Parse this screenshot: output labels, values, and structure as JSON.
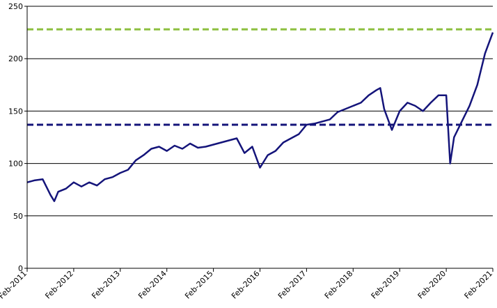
{
  "chart_data": {
    "type": "line",
    "title": "",
    "xlabel": "",
    "ylabel": "",
    "ylim": [
      0,
      250
    ],
    "y_ticks": [
      0,
      50,
      100,
      150,
      200,
      250
    ],
    "x_ticks": [
      "Feb-2011",
      "Feb-2012",
      "Feb-2013",
      "Feb-2014",
      "Feb-2015",
      "Feb-2016",
      "Feb-2017",
      "Feb-2018",
      "Feb-2019",
      "Feb-2020",
      "Feb-2021"
    ],
    "grid": "horizontal",
    "colors": {
      "series": "#14147a",
      "level_high": "#8cbf3f",
      "level_low": "#14147a"
    },
    "reference_lines": [
      {
        "y": 228,
        "color": "#8cbf3f",
        "style": "dashed"
      },
      {
        "y": 137,
        "color": "#14147a",
        "style": "dashed"
      }
    ],
    "series": [
      {
        "x": [
          "2011-02",
          "2011-04",
          "2011-06",
          "2011-08",
          "2011-09",
          "2011-10",
          "2011-12",
          "2012-02",
          "2012-04",
          "2012-06",
          "2012-08",
          "2012-10",
          "2012-12",
          "2013-02",
          "2013-04",
          "2013-06",
          "2013-08",
          "2013-10",
          "2013-12",
          "2014-02",
          "2014-04",
          "2014-06",
          "2014-08",
          "2014-10",
          "2014-12",
          "2015-02",
          "2015-04",
          "2015-06",
          "2015-08",
          "2015-10",
          "2015-12",
          "2016-02",
          "2016-04",
          "2016-06",
          "2016-08",
          "2016-10",
          "2016-12",
          "2017-02",
          "2017-04",
          "2017-06",
          "2017-08",
          "2017-10",
          "2017-12",
          "2018-02",
          "2018-04",
          "2018-06",
          "2018-08",
          "2018-09",
          "2018-10",
          "2018-12",
          "2019-02",
          "2019-04",
          "2019-06",
          "2019-08",
          "2019-10",
          "2019-12",
          "2020-02",
          "2020-03",
          "2020-04",
          "2020-06",
          "2020-08",
          "2020-10",
          "2020-12",
          "2021-02"
        ],
        "values": [
          82,
          84,
          85,
          70,
          64,
          73,
          76,
          82,
          78,
          82,
          79,
          85,
          87,
          91,
          94,
          103,
          108,
          114,
          116,
          112,
          117,
          114,
          119,
          115,
          116,
          118,
          120,
          122,
          124,
          110,
          116,
          96,
          108,
          112,
          120,
          124,
          128,
          137,
          138,
          140,
          142,
          149,
          152,
          155,
          158,
          165,
          170,
          172,
          152,
          132,
          150,
          158,
          155,
          150,
          158,
          165,
          165,
          100,
          125,
          140,
          155,
          175,
          205,
          225
        ]
      }
    ]
  }
}
